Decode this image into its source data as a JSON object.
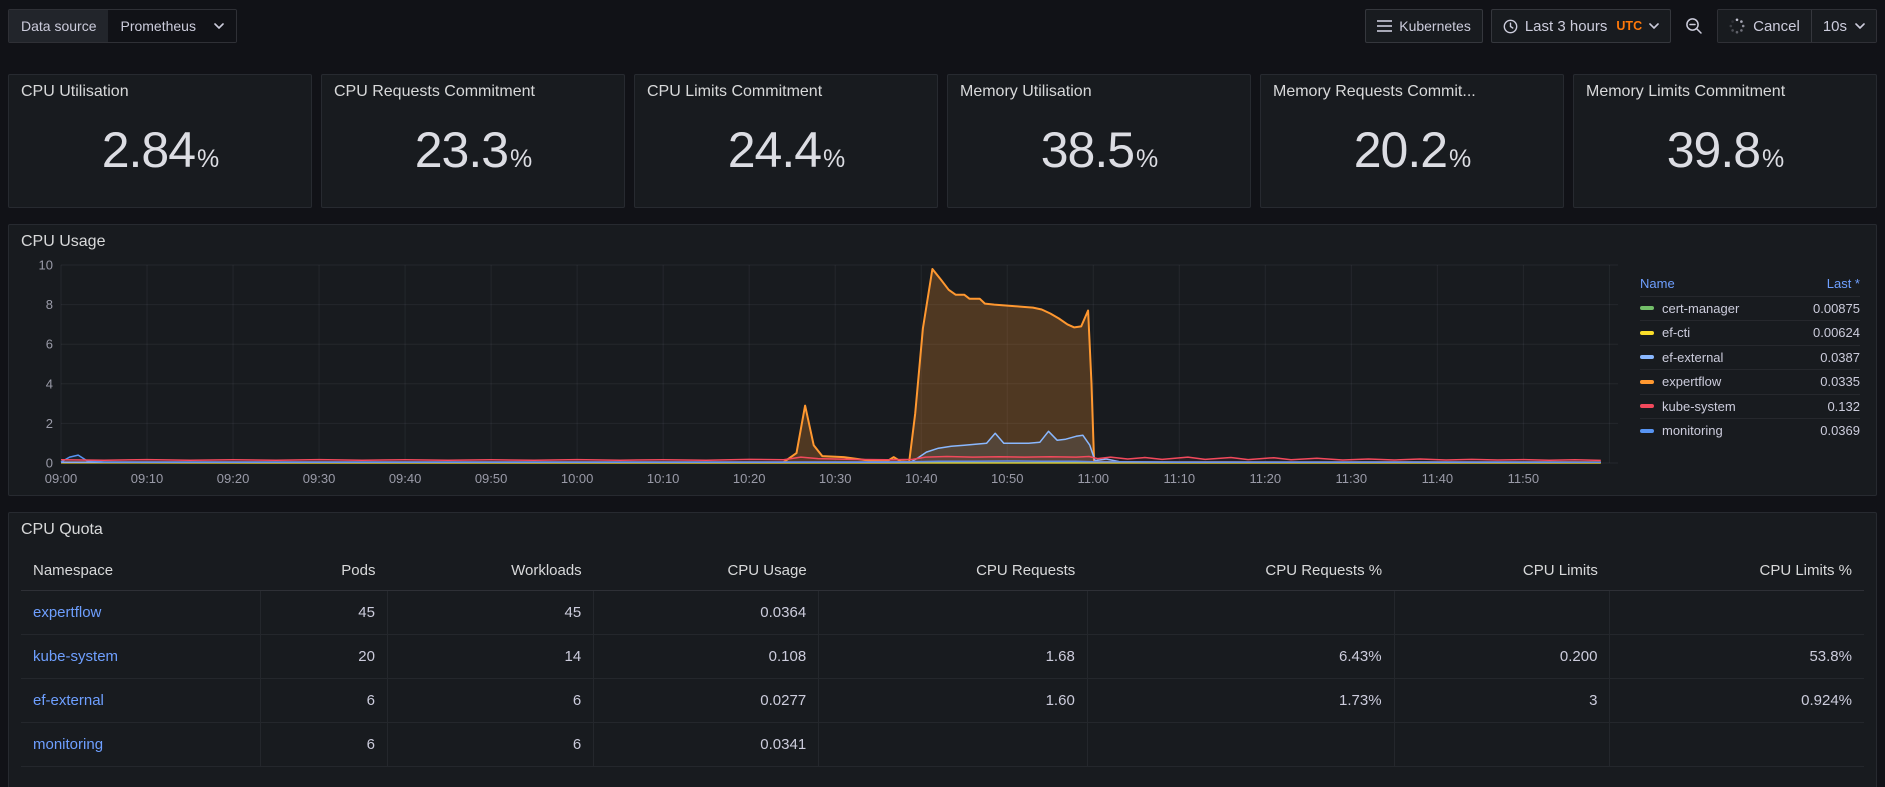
{
  "toolbar": {
    "datasource_label": "Data source",
    "datasource_value": "Prometheus",
    "dashboard_button": "Kubernetes",
    "time_range": "Last 3 hours",
    "timezone": "UTC",
    "refresh_cancel_label": "Cancel",
    "refresh_interval": "10s",
    "accent_orange": "#FF780A"
  },
  "stats": [
    {
      "title": "CPU Utilisation",
      "value": "2.84",
      "suffix": "%"
    },
    {
      "title": "CPU Requests Commitment",
      "value": "23.3",
      "suffix": "%"
    },
    {
      "title": "CPU Limits Commitment",
      "value": "24.4",
      "suffix": "%"
    },
    {
      "title": "Memory Utilisation",
      "value": "38.5",
      "suffix": "%"
    },
    {
      "title": "Memory Requests Commit...",
      "value": "20.2",
      "suffix": "%"
    },
    {
      "title": "Memory Limits Commitment",
      "value": "39.8",
      "suffix": "%"
    }
  ],
  "cpu_usage": {
    "title": "CPU Usage",
    "legend_headers": {
      "name": "Name",
      "value": "Last *"
    },
    "chart_data": {
      "type": "line",
      "title": "CPU Usage",
      "ylim": [
        0,
        10
      ],
      "y_ticks": [
        0,
        2,
        4,
        6,
        8,
        10
      ],
      "x_range_minutes": [
        0,
        181
      ],
      "x_tick_step_minutes": 10,
      "x_ticks": [
        "09:00",
        "09:10",
        "09:20",
        "09:30",
        "09:40",
        "09:50",
        "10:00",
        "10:10",
        "10:20",
        "10:30",
        "10:40",
        "10:50",
        "11:00",
        "11:10",
        "11:20",
        "11:30",
        "11:40",
        "11:50"
      ],
      "grid": true,
      "legend_position": "right-table",
      "draw_order": [
        3,
        0,
        1,
        2,
        5,
        4
      ],
      "series": [
        {
          "name": "cert-manager",
          "color": "#73BF69",
          "last": "0.00875",
          "fill_opacity": 0.06,
          "points": [
            [
              0,
              0.012
            ],
            [
              179,
              0.009
            ]
          ]
        },
        {
          "name": "ef-cti",
          "color": "#FADE2A",
          "last": "0.00624",
          "fill_opacity": 0.06,
          "points": [
            [
              0,
              0.008
            ],
            [
              179,
              0.006
            ]
          ]
        },
        {
          "name": "ef-external",
          "color": "#8AB8FF",
          "last": "0.0387",
          "fill_opacity": 0.1,
          "points": [
            [
              0,
              0.04
            ],
            [
              40,
              0.04
            ],
            [
              80,
              0.04
            ],
            [
              95,
              0.04
            ],
            [
              98.8,
              0.05
            ],
            [
              99.6,
              0.25
            ],
            [
              100.6,
              0.55
            ],
            [
              102,
              0.75
            ],
            [
              103.5,
              0.85
            ],
            [
              105,
              0.9
            ],
            [
              106.3,
              0.95
            ],
            [
              107.6,
              1.0
            ],
            [
              108.6,
              1.5
            ],
            [
              109.6,
              1.0
            ],
            [
              111,
              1.0
            ],
            [
              112.5,
              1.0
            ],
            [
              113.8,
              1.05
            ],
            [
              114.8,
              1.6
            ],
            [
              115.8,
              1.15
            ],
            [
              116.8,
              1.2
            ],
            [
              118,
              1.35
            ],
            [
              118.8,
              1.4
            ],
            [
              119.6,
              0.9
            ],
            [
              120.2,
              0.12
            ],
            [
              121.5,
              0.2
            ],
            [
              123,
              0.07
            ],
            [
              130,
              0.04
            ],
            [
              150,
              0.04
            ],
            [
              170,
              0.04
            ],
            [
              179,
              0.039
            ]
          ]
        },
        {
          "name": "expertflow",
          "color": "#FF9830",
          "last": "0.0335",
          "fill_opacity": 0.24,
          "points": [
            [
              0,
              0.03
            ],
            [
              20,
              0.03
            ],
            [
              40,
              0.03
            ],
            [
              60,
              0.03
            ],
            [
              80,
              0.03
            ],
            [
              84,
              0.04
            ],
            [
              85.5,
              0.5
            ],
            [
              86.5,
              2.9
            ],
            [
              87.5,
              0.9
            ],
            [
              88.5,
              0.35
            ],
            [
              91,
              0.3
            ],
            [
              94,
              0.12
            ],
            [
              96,
              0.08
            ],
            [
              96.8,
              0.3
            ],
            [
              97.6,
              0.08
            ],
            [
              98.6,
              0.06
            ],
            [
              99.3,
              2.5
            ],
            [
              100.2,
              6.8
            ],
            [
              101.3,
              9.8
            ],
            [
              102.3,
              9.25
            ],
            [
              103.2,
              8.75
            ],
            [
              104,
              8.5
            ],
            [
              105,
              8.5
            ],
            [
              105.6,
              8.3
            ],
            [
              106.8,
              8.3
            ],
            [
              107.4,
              8.05
            ],
            [
              108.5,
              8.0
            ],
            [
              110,
              7.95
            ],
            [
              111.5,
              7.9
            ],
            [
              113,
              7.85
            ],
            [
              114,
              7.75
            ],
            [
              115,
              7.55
            ],
            [
              116,
              7.3
            ],
            [
              117,
              7.0
            ],
            [
              117.8,
              6.85
            ],
            [
              118.6,
              6.9
            ],
            [
              119.4,
              7.7
            ],
            [
              119.8,
              4.0
            ],
            [
              120.1,
              0.06
            ],
            [
              125,
              0.03
            ],
            [
              135,
              0.035
            ],
            [
              145,
              0.03
            ],
            [
              155,
              0.035
            ],
            [
              165,
              0.03
            ],
            [
              172,
              0.035
            ],
            [
              179,
              0.034
            ]
          ]
        },
        {
          "name": "kube-system",
          "color": "#F2495C",
          "last": "0.132",
          "fill_opacity": 0.08,
          "points": [
            [
              0,
              0.16
            ],
            [
              5,
              0.14
            ],
            [
              10,
              0.17
            ],
            [
              15,
              0.14
            ],
            [
              20,
              0.16
            ],
            [
              25,
              0.14
            ],
            [
              30,
              0.17
            ],
            [
              35,
              0.14
            ],
            [
              40,
              0.16
            ],
            [
              45,
              0.14
            ],
            [
              50,
              0.16
            ],
            [
              55,
              0.14
            ],
            [
              60,
              0.17
            ],
            [
              65,
              0.14
            ],
            [
              70,
              0.16
            ],
            [
              75,
              0.14
            ],
            [
              80,
              0.18
            ],
            [
              84,
              0.16
            ],
            [
              86,
              0.3
            ],
            [
              88,
              0.22
            ],
            [
              92,
              0.18
            ],
            [
              96,
              0.16
            ],
            [
              99,
              0.18
            ],
            [
              100.5,
              0.3
            ],
            [
              103,
              0.33
            ],
            [
              106,
              0.3
            ],
            [
              109,
              0.32
            ],
            [
              112,
              0.3
            ],
            [
              115,
              0.32
            ],
            [
              118,
              0.3
            ],
            [
              119.5,
              0.33
            ],
            [
              120.5,
              0.22
            ],
            [
              122,
              0.3
            ],
            [
              124,
              0.2
            ],
            [
              126,
              0.28
            ],
            [
              128,
              0.18
            ],
            [
              131,
              0.3
            ],
            [
              133,
              0.18
            ],
            [
              136,
              0.28
            ],
            [
              138,
              0.17
            ],
            [
              141,
              0.27
            ],
            [
              143,
              0.16
            ],
            [
              146,
              0.24
            ],
            [
              149,
              0.15
            ],
            [
              152,
              0.2
            ],
            [
              155,
              0.15
            ],
            [
              158,
              0.2
            ],
            [
              161,
              0.15
            ],
            [
              164,
              0.18
            ],
            [
              167,
              0.15
            ],
            [
              170,
              0.17
            ],
            [
              173,
              0.14
            ],
            [
              176,
              0.16
            ],
            [
              179,
              0.132
            ]
          ]
        },
        {
          "name": "monitoring",
          "color": "#5794F2",
          "last": "0.0369",
          "fill_opacity": 0.08,
          "points": [
            [
              0,
              0.05
            ],
            [
              1,
              0.3
            ],
            [
              2,
              0.4
            ],
            [
              3,
              0.12
            ],
            [
              5,
              0.05
            ],
            [
              20,
              0.05
            ],
            [
              40,
              0.05
            ],
            [
              60,
              0.05
            ],
            [
              80,
              0.05
            ],
            [
              99,
              0.06
            ],
            [
              102,
              0.09
            ],
            [
              106,
              0.09
            ],
            [
              110,
              0.1
            ],
            [
              114,
              0.09
            ],
            [
              118,
              0.09
            ],
            [
              120,
              0.06
            ],
            [
              130,
              0.05
            ],
            [
              150,
              0.05
            ],
            [
              170,
              0.05
            ],
            [
              179,
              0.037
            ]
          ]
        }
      ]
    }
  },
  "cpu_quota": {
    "title": "CPU Quota",
    "columns": [
      "Namespace",
      "Pods",
      "Workloads",
      "CPU Usage",
      "CPU Requests",
      "CPU Requests %",
      "CPU Limits",
      "CPU Limits %"
    ],
    "rows": [
      {
        "namespace": "expertflow",
        "cells": [
          "45",
          "45",
          "0.0364",
          "",
          "",
          "",
          ""
        ]
      },
      {
        "namespace": "kube-system",
        "cells": [
          "20",
          "14",
          "0.108",
          "1.68",
          "6.43%",
          "0.200",
          "53.8%"
        ]
      },
      {
        "namespace": "ef-external",
        "cells": [
          "6",
          "6",
          "0.0277",
          "1.60",
          "1.73%",
          "3",
          "0.924%"
        ]
      },
      {
        "namespace": "monitoring",
        "cells": [
          "6",
          "6",
          "0.0341",
          "",
          "",
          "",
          ""
        ]
      }
    ]
  }
}
